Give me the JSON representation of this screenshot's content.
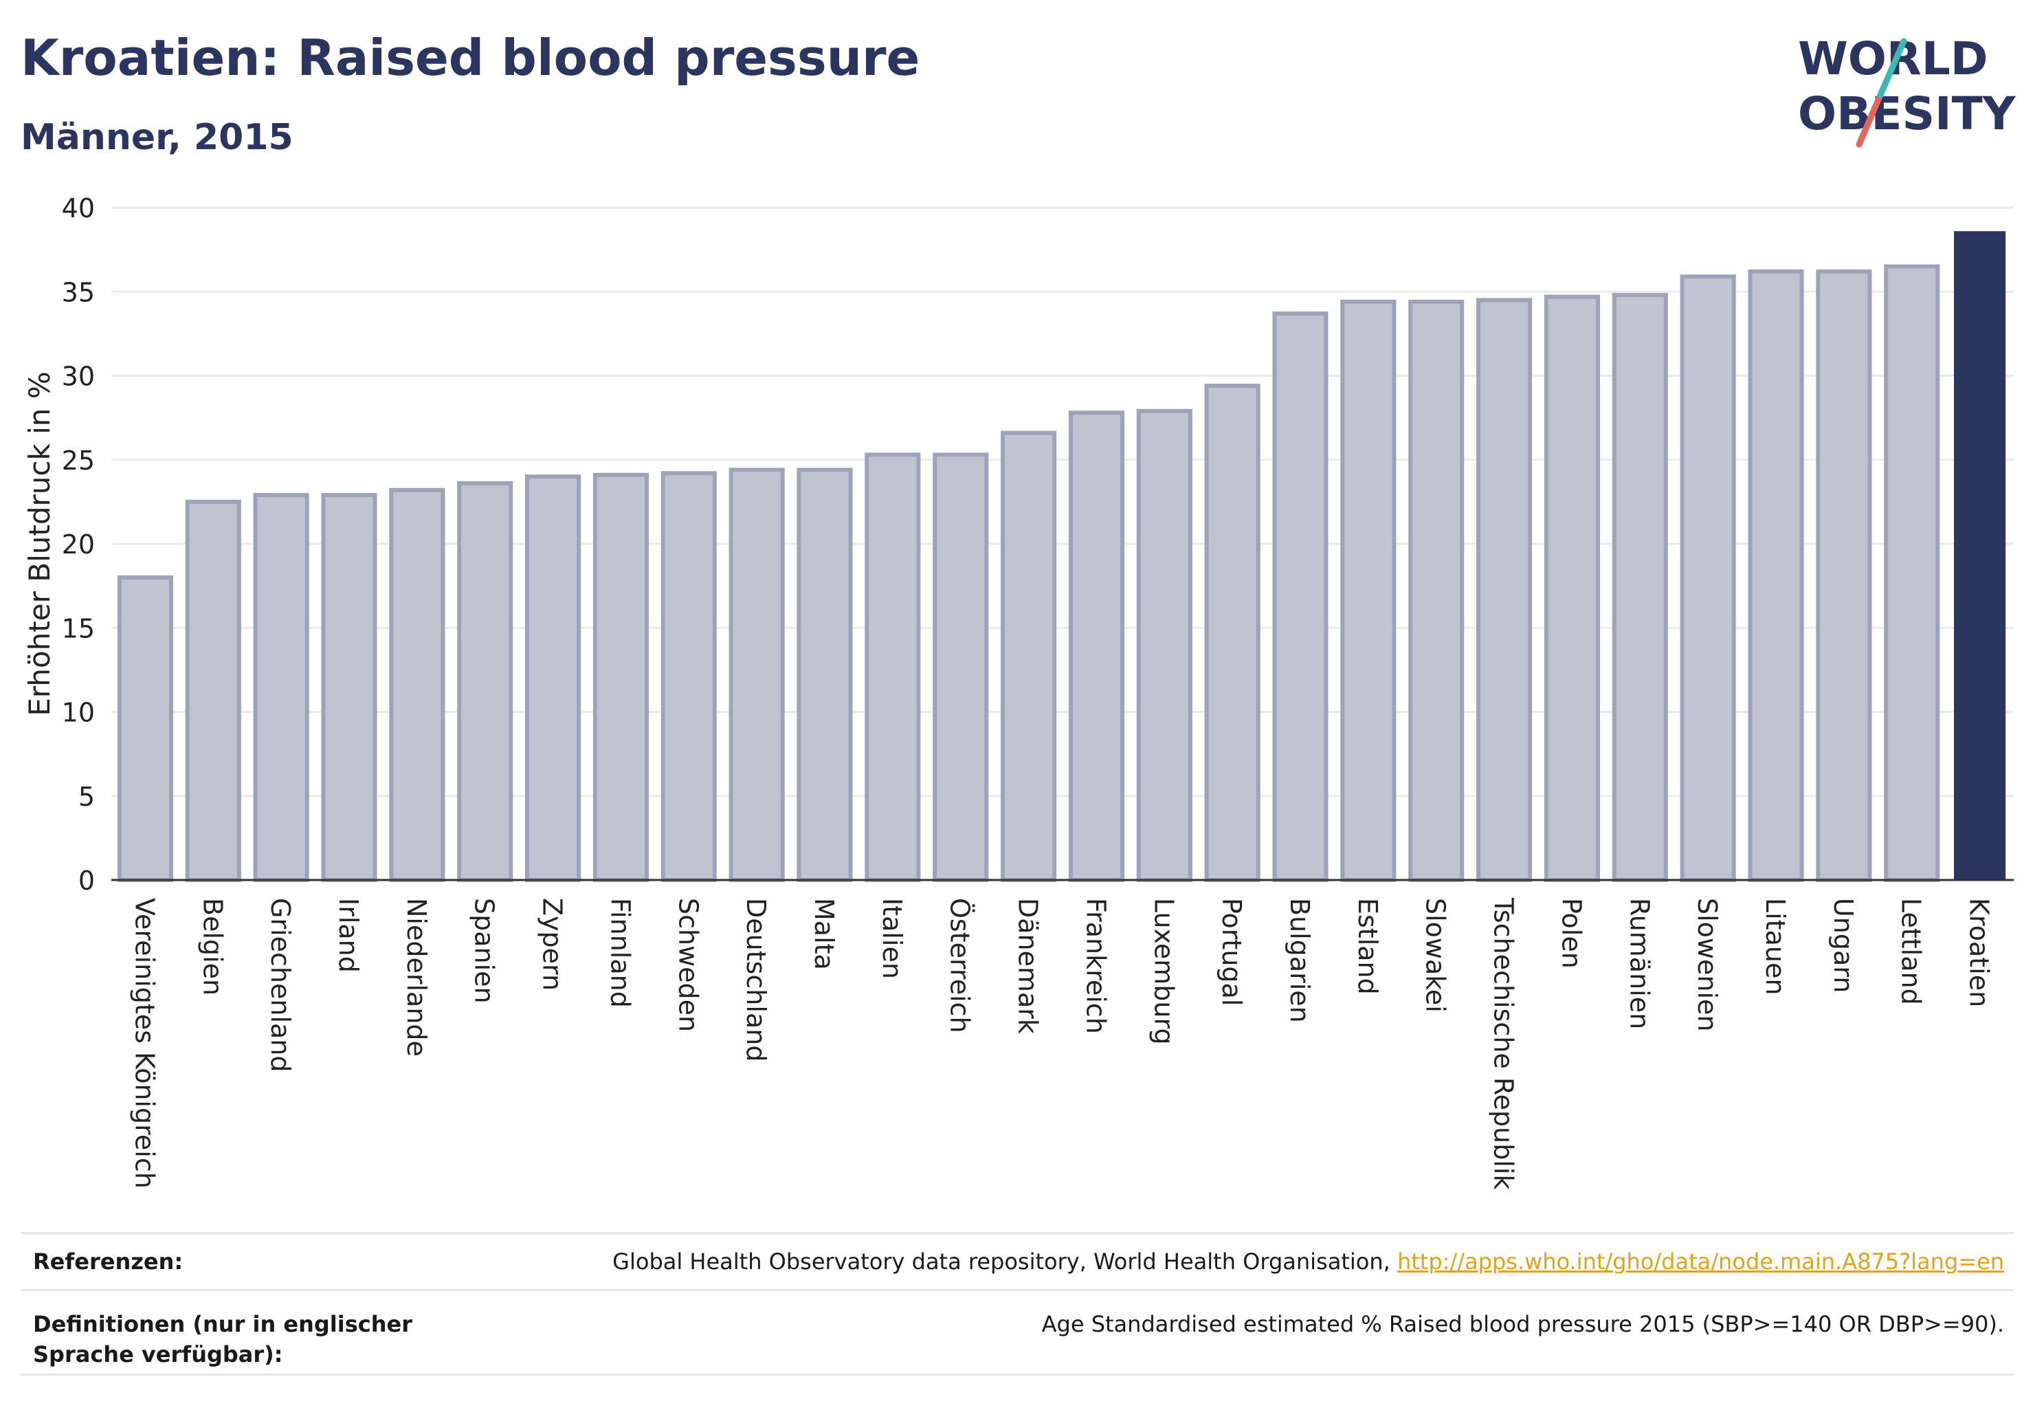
{
  "header": {
    "title": "Kroatien: Raised blood pressure",
    "subtitle": "Männer, 2015"
  },
  "logo": {
    "line1": "WORLD",
    "line2": "OBESITY",
    "colors": {
      "text": "#2c3560",
      "accent_teal": "#3fb7b5",
      "accent_red": "#e0685a"
    }
  },
  "chart_data": {
    "type": "bar",
    "title": "",
    "xlabel": "",
    "ylabel": "Erhöhter Blutdruck in %",
    "ylim": [
      0,
      40
    ],
    "yticks": [
      0,
      5,
      10,
      15,
      20,
      25,
      30,
      35,
      40
    ],
    "grid": true,
    "categories": [
      "Vereinigtes Königreich",
      "Belgien",
      "Griechenland",
      "Irland",
      "Niederlande",
      "Spanien",
      "Zypern",
      "Finnland",
      "Schweden",
      "Deutschland",
      "Malta",
      "Italien",
      "Österreich",
      "Dänemark",
      "Frankreich",
      "Luxemburg",
      "Portugal",
      "Bulgarien",
      "Estland",
      "Slowakei",
      "Tschechische Republik",
      "Polen",
      "Rumänien",
      "Slowenien",
      "Litauen",
      "Ungarn",
      "Lettland",
      "Kroatien"
    ],
    "values": [
      18.0,
      22.5,
      22.9,
      22.9,
      23.2,
      23.6,
      24.0,
      24.1,
      24.2,
      24.4,
      24.4,
      25.3,
      25.3,
      26.6,
      27.8,
      27.9,
      29.4,
      33.7,
      34.4,
      34.4,
      34.5,
      34.7,
      34.8,
      35.9,
      36.2,
      36.2,
      36.5,
      38.6
    ],
    "highlight": "Kroatien",
    "colors": {
      "bar": "#c0c3d0",
      "bar_edge": "#9ea3ba",
      "highlight": "#2c3560",
      "grid": "#ebebef",
      "axis": "#333333"
    }
  },
  "footer": {
    "references_label": "Referenzen:",
    "references_text": "Global Health Observatory data repository, World Health Organisation, ",
    "references_link": "http://apps.who.int/gho/data/node.main.A875?lang=en",
    "definitions_label": "Definitionen (nur in englischer Sprache verfügbar):",
    "definitions_text": "Age Standardised estimated % Raised blood pressure 2015 (SBP>=140 OR DBP>=90)."
  }
}
